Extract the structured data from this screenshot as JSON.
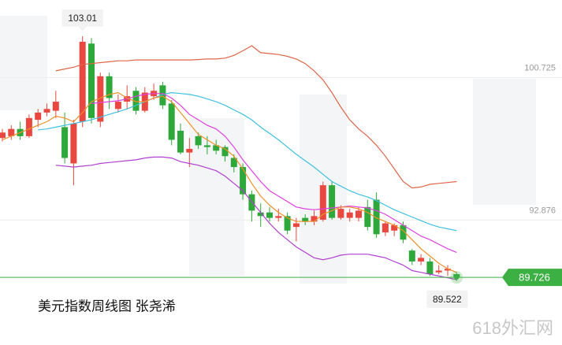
{
  "chart_data": {
    "type": "candlestick",
    "title": "美元指数周线图  张尧浠",
    "watermark": "618外汇网",
    "up_color": "#e8483f",
    "down_color": "#2ea83a",
    "open": [
      97.4,
      97.5,
      97.9,
      97.5,
      98.4,
      98.8,
      98.9,
      98.0,
      96.0,
      98.3,
      102.6,
      98.3,
      100.8,
      99.0,
      99.4,
      100.0,
      98.9,
      99.7,
      100.3,
      99.3,
      97.8,
      96.6,
      97.5,
      97.0,
      97.0,
      96.9,
      96.3,
      95.8,
      94.3,
      93.3,
      93.3,
      93.0,
      93.1,
      92.5,
      93.0,
      92.8,
      92.9,
      94.8,
      93.0,
      93.0,
      93.0,
      93.6,
      94.0,
      92.2,
      92.3,
      92.6,
      91.2,
      90.6,
      90.6,
      90.0,
      90.1,
      89.9
    ],
    "close": [
      97.7,
      97.9,
      97.5,
      98.5,
      98.8,
      99.0,
      99.4,
      96.3,
      98.2,
      102.7,
      98.5,
      100.8,
      99.6,
      99.4,
      99.7,
      98.9,
      99.9,
      100.0,
      99.2,
      97.3,
      96.6,
      96.8,
      97.0,
      96.9,
      96.7,
      96.4,
      95.8,
      94.3,
      93.4,
      93.1,
      93.0,
      93.1,
      92.3,
      92.7,
      92.8,
      93.1,
      94.8,
      93.0,
      93.5,
      93.3,
      93.4,
      92.5,
      92.1,
      92.7,
      92.6,
      91.8,
      90.6,
      90.8,
      89.9,
      90.1,
      90.2,
      89.726
    ],
    "high": [
      97.9,
      98.1,
      98.3,
      98.7,
      99.0,
      99.3,
      100.0,
      98.8,
      98.4,
      103.01,
      102.9,
      101.0,
      101.0,
      99.8,
      100.3,
      100.2,
      100.2,
      100.4,
      100.5,
      99.5,
      98.2,
      97.4,
      97.7,
      97.5,
      97.3,
      97.0,
      96.5,
      96.0,
      94.5,
      93.8,
      93.6,
      93.5,
      93.3,
      93.0,
      93.2,
      93.4,
      95.0,
      95.0,
      93.7,
      93.5,
      93.6,
      94.0,
      94.4,
      92.8,
      92.7,
      92.8,
      91.3,
      91.0,
      90.8,
      90.4,
      90.4,
      90.0
    ],
    "low": [
      97.2,
      97.3,
      97.3,
      97.4,
      98.0,
      98.6,
      98.5,
      96.0,
      94.8,
      98.0,
      98.2,
      98.0,
      99.0,
      98.8,
      99.0,
      98.7,
      98.8,
      99.5,
      99.0,
      97.0,
      96.5,
      95.8,
      96.8,
      96.5,
      96.5,
      96.1,
      95.5,
      94.0,
      92.8,
      92.5,
      92.8,
      92.8,
      92.1,
      91.7,
      92.6,
      92.6,
      92.8,
      92.9,
      92.9,
      92.8,
      92.8,
      92.3,
      91.9,
      92.0,
      92.0,
      91.6,
      90.4,
      90.4,
      89.8,
      89.9,
      89.8,
      89.522
    ],
    "series": [
      {
        "color": "#e0664a",
        "values": [
          null,
          null,
          null,
          null,
          null,
          null,
          101.1,
          101.2,
          101.3,
          101.45,
          101.5,
          101.55,
          101.6,
          101.65,
          101.65,
          101.7,
          101.7,
          101.7,
          101.7,
          101.7,
          101.7,
          101.7,
          101.72,
          101.75,
          101.75,
          101.8,
          101.95,
          102.2,
          102.48,
          102.1,
          102.05,
          102.0,
          101.9,
          101.75,
          101.5,
          101.1,
          100.6,
          99.9,
          99.1,
          98.4,
          97.9,
          97.5,
          97.0,
          96.4,
          95.7,
          95.0,
          94.65,
          94.7,
          94.85,
          94.9,
          94.95,
          95.0
        ]
      },
      {
        "color": "#3fc1e0",
        "values": [
          null,
          null,
          null,
          null,
          97.85,
          97.9,
          98.0,
          98.1,
          98.2,
          98.3,
          98.4,
          98.55,
          98.7,
          98.85,
          99.0,
          99.2,
          99.4,
          99.6,
          99.8,
          99.9,
          99.85,
          99.8,
          99.7,
          99.55,
          99.4,
          99.2,
          98.95,
          98.7,
          98.4,
          98.0,
          97.65,
          97.3,
          96.9,
          96.5,
          96.15,
          95.8,
          95.4,
          95.0,
          94.75,
          94.5,
          94.3,
          94.15,
          93.95,
          93.7,
          93.45,
          93.25,
          93.05,
          92.85,
          92.65,
          92.5,
          92.4,
          92.3
        ]
      },
      {
        "color": "#e040e0",
        "values": [
          null,
          null,
          null,
          null,
          null,
          null,
          null,
          null,
          null,
          null,
          99.3,
          99.35,
          99.4,
          99.45,
          99.55,
          99.7,
          99.8,
          99.85,
          99.85,
          99.6,
          99.2,
          98.7,
          98.4,
          98.1,
          97.9,
          97.5,
          96.9,
          96.2,
          95.6,
          95.0,
          94.5,
          94.2,
          93.9,
          93.6,
          93.5,
          93.45,
          93.5,
          93.55,
          93.6,
          93.65,
          93.6,
          93.55,
          93.4,
          93.2,
          92.9,
          92.6,
          92.3,
          92.0,
          91.8,
          91.55,
          91.3,
          91.1
        ]
      },
      {
        "color": "#f0902a",
        "values": [
          97.3,
          97.5,
          97.7,
          97.9,
          98.1,
          98.3,
          98.6,
          98.5,
          98.3,
          98.8,
          99.4,
          99.6,
          99.8,
          99.9,
          99.6,
          99.4,
          99.4,
          99.6,
          99.7,
          99.4,
          98.8,
          98.2,
          97.6,
          97.3,
          97.0,
          96.8,
          96.4,
          95.7,
          94.9,
          94.2,
          93.7,
          93.3,
          93.0,
          92.8,
          92.8,
          92.8,
          93.2,
          93.4,
          93.6,
          93.6,
          93.5,
          93.3,
          93.0,
          92.8,
          92.6,
          92.3,
          91.8,
          91.3,
          90.9,
          90.5,
          90.2,
          90.0
        ]
      },
      {
        "color": "#b040d0",
        "values": [
          null,
          null,
          null,
          null,
          null,
          null,
          95.9,
          95.85,
          95.8,
          95.85,
          95.9,
          96.0,
          96.05,
          96.1,
          96.15,
          96.2,
          96.3,
          96.35,
          96.35,
          96.3,
          96.1,
          96.0,
          95.9,
          95.75,
          95.6,
          95.3,
          94.9,
          94.5,
          93.9,
          93.3,
          92.7,
          92.2,
          91.8,
          91.4,
          91.1,
          90.8,
          90.7,
          90.8,
          90.95,
          91.0,
          91.0,
          91.0,
          90.9,
          90.8,
          90.6,
          90.4,
          90.1,
          90.0,
          89.9,
          89.8,
          89.7,
          89.6
        ]
      }
    ],
    "ylim": [
      86,
      105
    ],
    "yticks": [
      100.725,
      92.876
    ],
    "grid": true,
    "last_price": 89.726,
    "last_price_color": "#3cb043",
    "max_label": 103.01,
    "min_label": 89.522
  }
}
